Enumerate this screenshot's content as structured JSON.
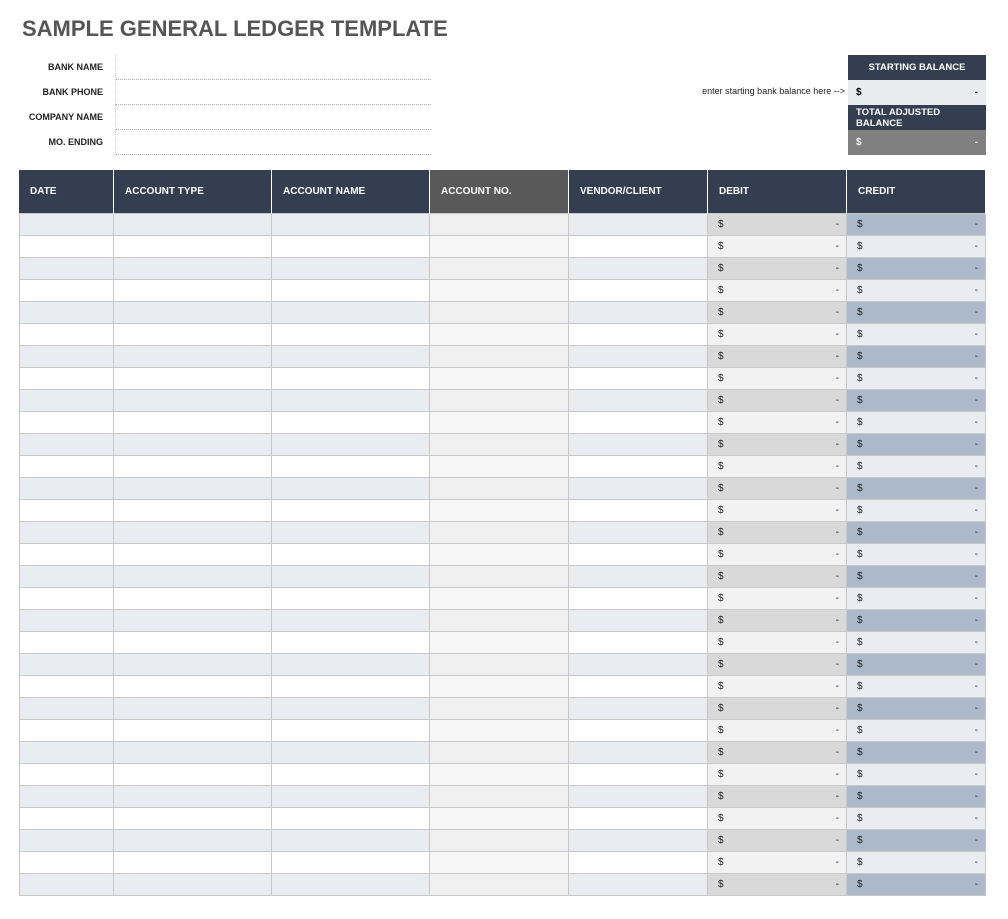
{
  "header": {
    "title": "SAMPLE GENERAL LEDGER TEMPLATE"
  },
  "info_fields": [
    {
      "label": "BANK NAME"
    },
    {
      "label": "BANK PHONE"
    },
    {
      "label": "COMPANY NAME"
    },
    {
      "label": "MO. ENDING"
    }
  ],
  "balance": {
    "note": "enter starting bank balance here -->",
    "starting": {
      "label": "STARTING BALANCE",
      "currency": "$",
      "value": "-"
    },
    "total_adjusted": {
      "label": "TOTAL ADJUSTED BALANCE",
      "currency": "$",
      "value": "-"
    }
  },
  "table": {
    "columns": [
      "DATE",
      "ACCOUNT TYPE",
      "ACCOUNT NAME",
      "ACCOUNT NO.",
      "VENDOR/CLIENT",
      "DEBIT",
      "CREDIT"
    ],
    "rows": [
      [
        "$",
        "-",
        "$",
        "-"
      ],
      [
        "$",
        "-",
        "$",
        "-"
      ],
      [
        "$",
        "-",
        "$",
        "-"
      ],
      [
        "$",
        "-",
        "$",
        "-"
      ],
      [
        "$",
        "-",
        "$",
        "-"
      ],
      [
        "$",
        "-",
        "$",
        "-"
      ],
      [
        "$",
        "-",
        "$",
        "-"
      ],
      [
        "$",
        "-",
        "$",
        "-"
      ],
      [
        "$",
        "-",
        "$",
        "-"
      ],
      [
        "$",
        "-",
        "$",
        "-"
      ],
      [
        "$",
        "-",
        "$",
        "-"
      ],
      [
        "$",
        "-",
        "$",
        "-"
      ],
      [
        "$",
        "-",
        "$",
        "-"
      ],
      [
        "$",
        "-",
        "$",
        "-"
      ],
      [
        "$",
        "-",
        "$",
        "-"
      ],
      [
        "$",
        "-",
        "$",
        "-"
      ],
      [
        "$",
        "-",
        "$",
        "-"
      ],
      [
        "$",
        "-",
        "$",
        "-"
      ],
      [
        "$",
        "-",
        "$",
        "-"
      ],
      [
        "$",
        "-",
        "$",
        "-"
      ],
      [
        "$",
        "-",
        "$",
        "-"
      ],
      [
        "$",
        "-",
        "$",
        "-"
      ],
      [
        "$",
        "-",
        "$",
        "-"
      ],
      [
        "$",
        "-",
        "$",
        "-"
      ],
      [
        "$",
        "-",
        "$",
        "-"
      ],
      [
        "$",
        "-",
        "$",
        "-"
      ],
      [
        "$",
        "-",
        "$",
        "-"
      ],
      [
        "$",
        "-",
        "$",
        "-"
      ],
      [
        "$",
        "-",
        "$",
        "-"
      ],
      [
        "$",
        "-",
        "$",
        "-"
      ],
      [
        "$",
        "-",
        "$",
        "-"
      ]
    ]
  }
}
